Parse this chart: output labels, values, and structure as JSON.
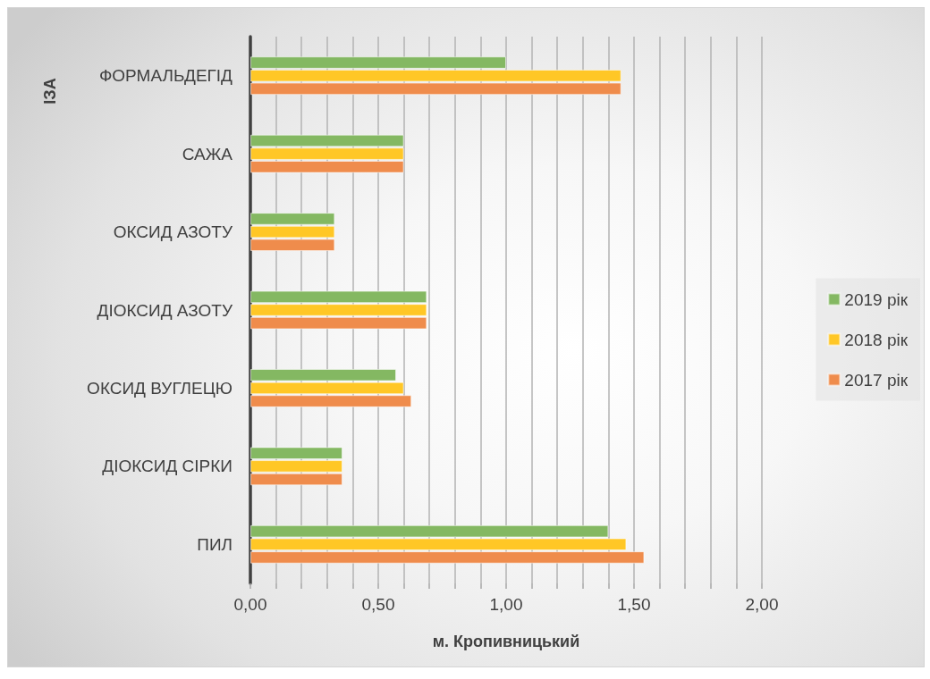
{
  "chart_data": {
    "type": "bar",
    "orientation": "horizontal",
    "xlabel": "м. Кропивницький",
    "ylabel": "ІЗА",
    "categories": [
      "ФОРМАЛЬДЕГІД",
      "САЖА",
      "ОКСИД АЗОТУ",
      "ДІОКСИД АЗОТУ",
      "ОКСИД ВУГЛЕЦЮ",
      "ДІОКСИД СІРКИ",
      "ПИЛ"
    ],
    "series": [
      {
        "name": "2019 рік",
        "color": "#84b862",
        "values": [
          1.0,
          0.6,
          0.33,
          0.69,
          0.57,
          0.36,
          1.4
        ]
      },
      {
        "name": "2018 рік",
        "color": "#ffc726",
        "values": [
          1.45,
          0.6,
          0.33,
          0.69,
          0.6,
          0.36,
          1.47
        ]
      },
      {
        "name": "2017 рік",
        "color": "#ef8c4c",
        "values": [
          1.45,
          0.6,
          0.33,
          0.69,
          0.63,
          0.36,
          1.54
        ]
      }
    ],
    "xlim": [
      0,
      2
    ],
    "xticks": [
      {
        "value": 0,
        "label": "0,00"
      },
      {
        "value": 0.1,
        "label": null
      },
      {
        "value": 0.2,
        "label": null
      },
      {
        "value": 0.3,
        "label": null
      },
      {
        "value": 0.4,
        "label": null
      },
      {
        "value": 0.5,
        "label": "0,50"
      },
      {
        "value": 0.6,
        "label": null
      },
      {
        "value": 0.7,
        "label": null
      },
      {
        "value": 0.8,
        "label": null
      },
      {
        "value": 0.9,
        "label": null
      },
      {
        "value": 1,
        "label": "1,00"
      },
      {
        "value": 1.1,
        "label": null
      },
      {
        "value": 1.2,
        "label": null
      },
      {
        "value": 1.3,
        "label": null
      },
      {
        "value": 1.4,
        "label": null
      },
      {
        "value": 1.5,
        "label": "1,50"
      },
      {
        "value": 1.6,
        "label": null
      },
      {
        "value": 1.7,
        "label": null
      },
      {
        "value": 1.8,
        "label": null
      },
      {
        "value": 1.9,
        "label": null
      },
      {
        "value": 2,
        "label": "2,00"
      }
    ],
    "grid": "x",
    "legend": "right"
  }
}
